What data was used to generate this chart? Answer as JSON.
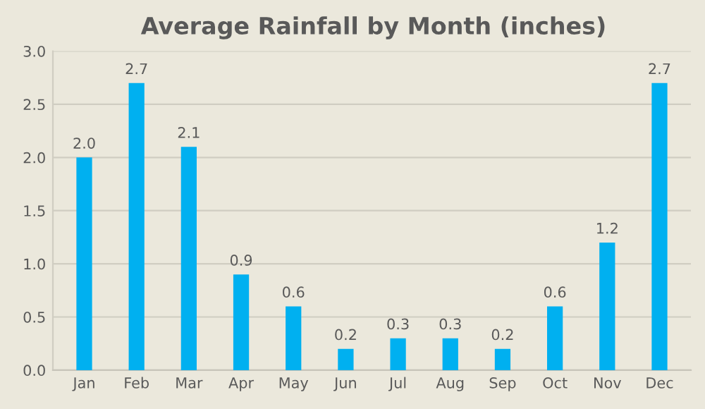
{
  "chart_data": {
    "type": "bar",
    "title": "Average Rainfall by Month (inches)",
    "categories": [
      "Jan",
      "Feb",
      "Mar",
      "Apr",
      "May",
      "Jun",
      "Jul",
      "Aug",
      "Sep",
      "Oct",
      "Nov",
      "Dec"
    ],
    "values": [
      2.0,
      2.7,
      2.1,
      0.9,
      0.6,
      0.2,
      0.3,
      0.3,
      0.2,
      0.6,
      1.2,
      2.7
    ],
    "value_labels": [
      "2.0",
      "2.7",
      "2.1",
      "0.9",
      "0.6",
      "0.2",
      "0.3",
      "0.3",
      "0.2",
      "0.6",
      "1.2",
      "2.7"
    ],
    "color": "#00b0f0",
    "ylim": [
      0,
      3.0
    ],
    "yticks": [
      {
        "value": 0,
        "label": "0.0"
      },
      {
        "value": 0.5,
        "label": "0.5"
      },
      {
        "value": 1.0,
        "label": "1.0"
      },
      {
        "value": 1.5,
        "label": "1.5"
      },
      {
        "value": 2.0,
        "label": "2.0"
      },
      {
        "value": 2.5,
        "label": "2.5"
      },
      {
        "value": 3.0,
        "label": "3.0"
      }
    ],
    "grid": "y"
  }
}
